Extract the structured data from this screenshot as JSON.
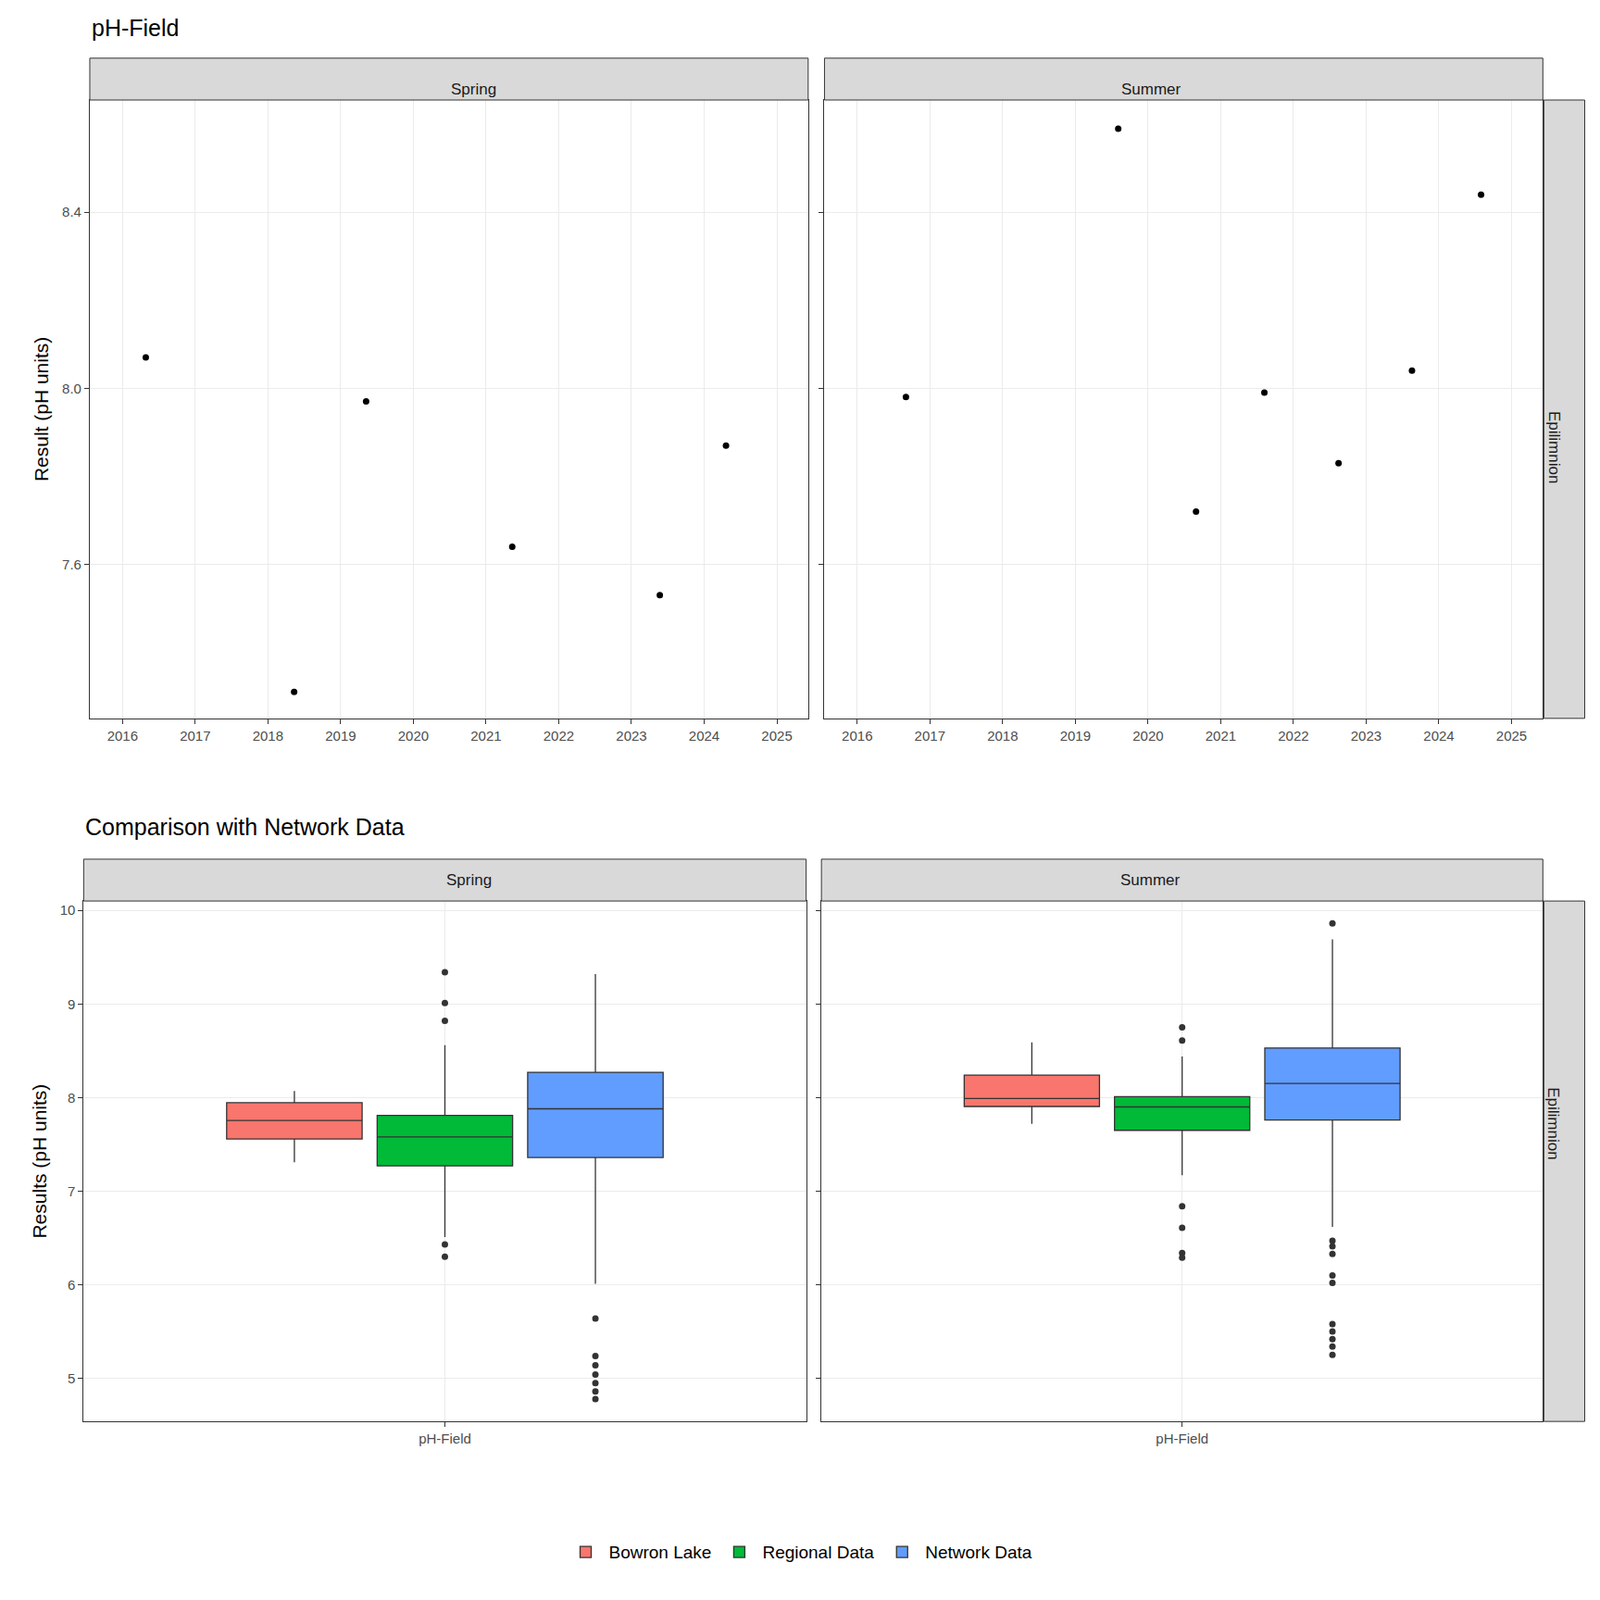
{
  "chart_data": [
    {
      "type": "scatter",
      "title": "pH-Field",
      "y_label": "Result (pH units)",
      "panels": [
        "Spring",
        "Summer"
      ],
      "row_panel": "Epilimnion",
      "x": [
        [
          2016.32,
          2018.36,
          2019.35,
          2021.36,
          2023.39,
          2024.3
        ],
        [
          2016.67,
          2019.59,
          2020.66,
          2021.6,
          2022.62,
          2023.63,
          2024.58
        ]
      ],
      "values": [
        [
          8.07,
          7.31,
          7.97,
          7.64,
          7.53,
          7.87
        ],
        [
          7.98,
          8.59,
          7.72,
          7.99,
          7.83,
          8.04,
          8.44
        ]
      ],
      "color": "#000000",
      "marker": "circle",
      "xlim": [
        2015.55,
        2025.43
      ],
      "xticks": [
        2016,
        2017,
        2018,
        2019,
        2020,
        2021,
        2022,
        2023,
        2024,
        2025
      ],
      "ylim": [
        7.25,
        8.655
      ],
      "yticks": [
        7.6,
        {
          "value": 8.0,
          "label": "8.0"
        },
        8.4
      ],
      "grid": true
    },
    {
      "type": "box",
      "title": "Comparison with Network Data",
      "y_label": "Results (pH units)",
      "panels": [
        "Spring",
        "Summer"
      ],
      "row_panel": "Epilimnion",
      "categories": [
        "pH-Field"
      ],
      "series": [
        {
          "name": "Bowron Lake",
          "color": "#F8766D",
          "q1": [
            7.5575,
            7.905
          ],
          "median": [
            7.755,
            7.99
          ],
          "q3": [
            7.945,
            8.24
          ],
          "lower_whisker": [
            7.31,
            7.72
          ],
          "upper_whisker": [
            8.07,
            8.59
          ],
          "outliers": [
            [],
            []
          ]
        },
        {
          "name": "Regional Data",
          "color": "#00BA38",
          "q1": [
            7.27,
            7.65
          ],
          "median": [
            7.58,
            7.9
          ],
          "q3": [
            7.81,
            8.01
          ],
          "lower_whisker": [
            6.51,
            7.17
          ],
          "upper_whisker": [
            8.56,
            8.44
          ],
          "outliers": [
            [
              9.34,
              9.01,
              8.82,
              6.43,
              6.3
            ],
            [
              8.75,
              8.61,
              6.84,
              6.61,
              6.34,
              6.29
            ]
          ]
        },
        {
          "name": "Network Data",
          "color": "#619CFF",
          "q1": [
            7.36,
            7.76
          ],
          "median": [
            7.88,
            8.15
          ],
          "q3": [
            8.27,
            8.53
          ],
          "lower_whisker": [
            6.01,
            6.62
          ],
          "upper_whisker": [
            9.32,
            9.69
          ],
          "outliers": [
            [
              5.64,
              5.24,
              5.14,
              5.04,
              4.95,
              4.86,
              4.78
            ],
            [
              9.86,
              6.47,
              6.41,
              6.33,
              6.1,
              6.02,
              5.58,
              5.5,
              5.42,
              5.34,
              5.25
            ]
          ]
        }
      ],
      "ylim": [
        4.54,
        10.1
      ],
      "yticks": [
        5,
        6,
        7,
        8,
        9,
        10
      ],
      "grid": true,
      "legend": "bottom"
    }
  ]
}
